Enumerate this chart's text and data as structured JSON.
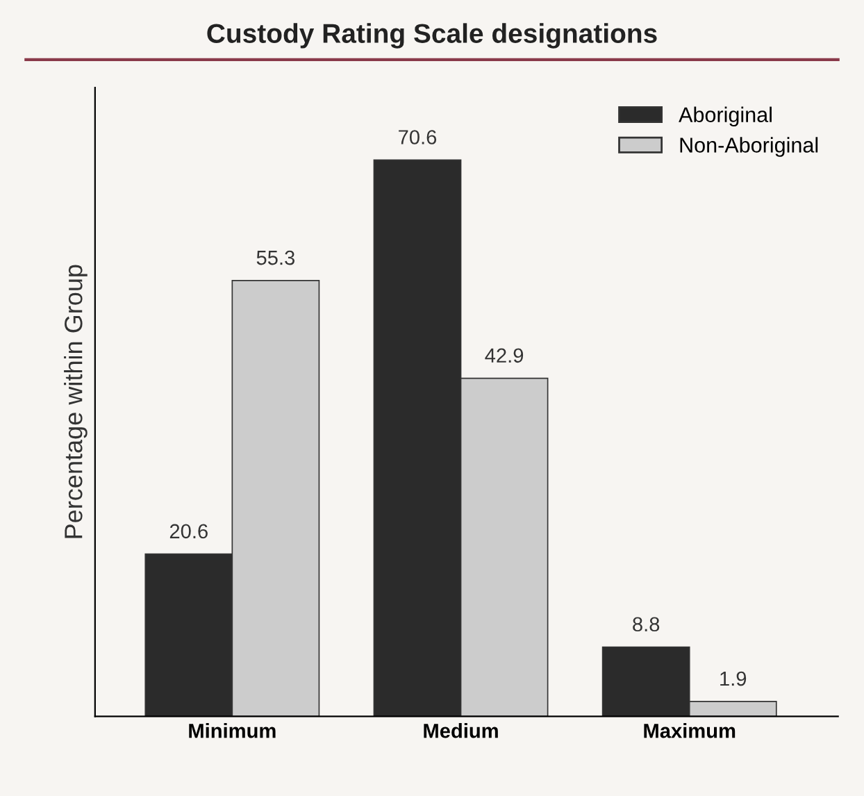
{
  "chart_data": {
    "type": "bar",
    "title": "Custody Rating Scale designations",
    "ylabel": "Percentage within Group",
    "categories": [
      "Minimum",
      "Medium",
      "Maximum"
    ],
    "series": [
      {
        "name": "Aboriginal",
        "color": "#2b2b2b",
        "values": [
          20.6,
          70.6,
          8.8
        ]
      },
      {
        "name": "Non-Aboriginal",
        "color": "#cccccc",
        "values": [
          55.3,
          42.9,
          1.9
        ]
      }
    ],
    "data_labels": true,
    "legend": "top right",
    "grid": false,
    "tick_labels": "x"
  }
}
